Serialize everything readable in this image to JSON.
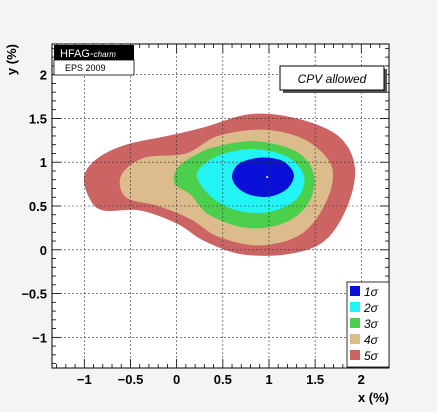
{
  "chart_data": {
    "type": "contour",
    "xlabel": "x (%)",
    "ylabel": "y (%)",
    "xlim": [
      -1.35,
      2.3
    ],
    "ylim": [
      -1.35,
      2.35
    ],
    "x_ticks": [
      "−1",
      "−0.5",
      "0",
      "0.5",
      "1",
      "1.5",
      "2"
    ],
    "y_ticks": [
      "−1",
      "−0.5",
      "0",
      "0.5",
      "1",
      "1.5",
      "2"
    ],
    "grid": true,
    "badge": {
      "line1_main": "HFAG-",
      "line1_sub": "charm",
      "line2": "EPS  2009"
    },
    "annotation": "CPV allowed",
    "central_value": {
      "x": 0.98,
      "y": 0.83
    },
    "legend": {
      "placement": "bottom-right",
      "entries": [
        {
          "label": "1σ",
          "color": "#0a10d8"
        },
        {
          "label": "2σ",
          "color": "#22f4f4"
        },
        {
          "label": "3σ",
          "color": "#4ccf4c"
        },
        {
          "label": "4σ",
          "color": "#dcbc8c"
        },
        {
          "label": "5σ",
          "color": "#cc6464"
        }
      ]
    },
    "regions": [
      {
        "label": "5σ",
        "color": "#cc6464",
        "points": [
          [
            -0.95,
            0.6
          ],
          [
            -1.0,
            0.85
          ],
          [
            -0.85,
            1.05
          ],
          [
            -0.55,
            1.2
          ],
          [
            -0.1,
            1.3
          ],
          [
            0.3,
            1.4
          ],
          [
            0.8,
            1.55
          ],
          [
            1.3,
            1.5
          ],
          [
            1.75,
            1.3
          ],
          [
            1.93,
            0.95
          ],
          [
            1.85,
            0.5
          ],
          [
            1.6,
            0.1
          ],
          [
            1.2,
            -0.05
          ],
          [
            0.7,
            -0.05
          ],
          [
            0.3,
            0.1
          ],
          [
            0.0,
            0.3
          ],
          [
            -0.4,
            0.45
          ],
          [
            -0.8,
            0.45
          ]
        ]
      },
      {
        "label": "4σ",
        "color": "#dcbc8c",
        "points": [
          [
            -0.55,
            0.6
          ],
          [
            -0.6,
            0.85
          ],
          [
            -0.35,
            1.05
          ],
          [
            0.1,
            1.1
          ],
          [
            0.45,
            1.3
          ],
          [
            0.95,
            1.37
          ],
          [
            1.4,
            1.25
          ],
          [
            1.68,
            0.95
          ],
          [
            1.62,
            0.55
          ],
          [
            1.35,
            0.18
          ],
          [
            0.9,
            0.05
          ],
          [
            0.45,
            0.15
          ],
          [
            0.15,
            0.35
          ],
          [
            -0.2,
            0.5
          ]
        ]
      },
      {
        "label": "3σ",
        "color": "#4ccf4c",
        "points": [
          [
            -0.02,
            0.75
          ],
          [
            0.0,
            0.92
          ],
          [
            0.15,
            1.05
          ],
          [
            0.4,
            1.17
          ],
          [
            0.85,
            1.24
          ],
          [
            1.3,
            1.12
          ],
          [
            1.49,
            0.85
          ],
          [
            1.42,
            0.52
          ],
          [
            1.15,
            0.3
          ],
          [
            0.75,
            0.25
          ],
          [
            0.35,
            0.4
          ],
          [
            0.15,
            0.63
          ]
        ]
      },
      {
        "label": "2σ",
        "color": "#22f4f4",
        "points": [
          [
            0.22,
            0.83
          ],
          [
            0.3,
            0.98
          ],
          [
            0.52,
            1.1
          ],
          [
            0.85,
            1.15
          ],
          [
            1.2,
            1.06
          ],
          [
            1.38,
            0.84
          ],
          [
            1.3,
            0.58
          ],
          [
            1.0,
            0.43
          ],
          [
            0.65,
            0.45
          ],
          [
            0.38,
            0.6
          ]
        ]
      },
      {
        "label": "1σ",
        "color": "#0a10d8",
        "points": [
          [
            0.6,
            0.83
          ],
          [
            0.66,
            0.97
          ],
          [
            0.82,
            1.04
          ],
          [
            1.0,
            1.05
          ],
          [
            1.17,
            1.0
          ],
          [
            1.27,
            0.86
          ],
          [
            1.2,
            0.7
          ],
          [
            1.02,
            0.61
          ],
          [
            0.82,
            0.62
          ],
          [
            0.67,
            0.7
          ]
        ]
      }
    ]
  }
}
